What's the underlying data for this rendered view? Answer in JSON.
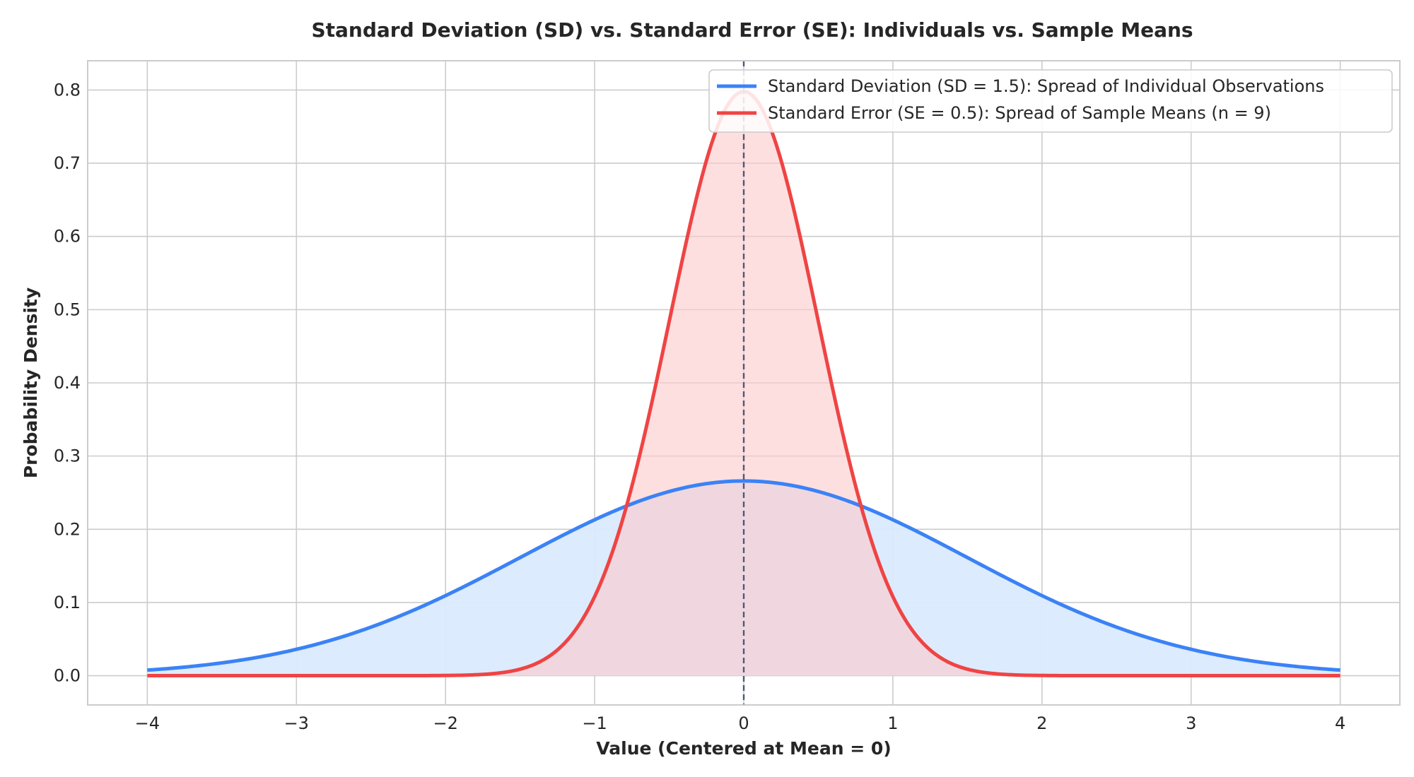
{
  "chart_data": {
    "type": "line",
    "title": "Standard Deviation (SD) vs. Standard Error (SE): Individuals vs. Sample Means",
    "xlabel": "Value (Centered at Mean = 0)",
    "ylabel": "Probability Density",
    "xlim": [
      -4.4,
      4.4
    ],
    "ylim": [
      -0.04,
      0.84
    ],
    "xticks": [
      -4,
      -3,
      -2,
      -1,
      0,
      1,
      2,
      3,
      4
    ],
    "xtick_labels": [
      "−4",
      "−3",
      "−2",
      "−1",
      "0",
      "1",
      "2",
      "3",
      "4"
    ],
    "yticks": [
      0.0,
      0.1,
      0.2,
      0.3,
      0.4,
      0.5,
      0.6,
      0.7,
      0.8
    ],
    "ytick_labels": [
      "0.0",
      "0.1",
      "0.2",
      "0.3",
      "0.4",
      "0.5",
      "0.6",
      "0.7",
      "0.8"
    ],
    "grid": true,
    "legend_position": "top-right",
    "mean_line": {
      "x": 0,
      "color": "#4b5a7a",
      "style": "dashed"
    },
    "series": [
      {
        "name": "Standard Deviation (SD = 1.5): Spread of Individual Observations",
        "distribution": "normal",
        "mean": 0,
        "sd": 1.5,
        "x_range": [
          -4,
          4
        ],
        "color": "#3b82f6",
        "fill_color": "#dbeafe",
        "x": [
          -4,
          -3,
          -2,
          -1,
          0,
          1,
          2,
          3,
          4
        ],
        "y": [
          0.008,
          0.036,
          0.109,
          0.213,
          0.266,
          0.213,
          0.109,
          0.036,
          0.008
        ]
      },
      {
        "name": "Standard Error (SE = 0.5): Spread of Sample Means (n = 9)",
        "distribution": "normal",
        "mean": 0,
        "sd": 0.5,
        "x_range": [
          -4,
          4
        ],
        "color": "#ef4444",
        "fill_color": "#fecaca",
        "x": [
          -2,
          -1,
          -0.5,
          0,
          0.5,
          1,
          2
        ],
        "y": [
          0.0003,
          0.108,
          0.484,
          0.798,
          0.484,
          0.108,
          0.0003
        ]
      }
    ]
  }
}
